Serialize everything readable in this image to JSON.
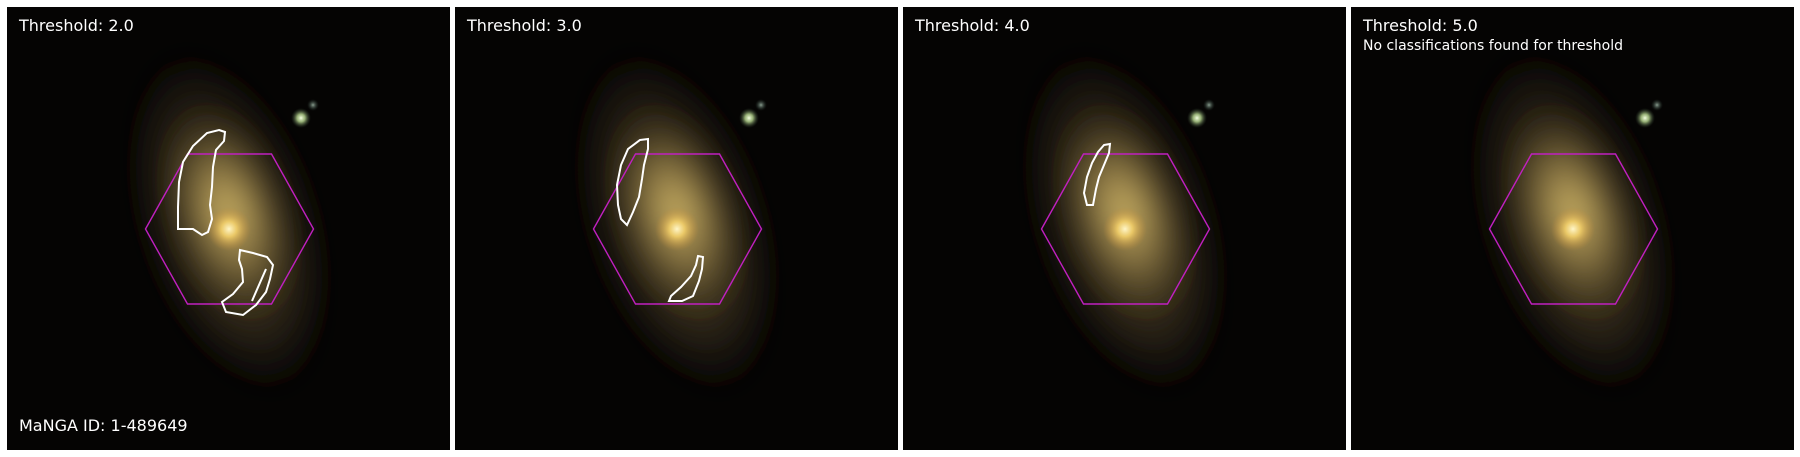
{
  "manga_id_label": "MaNGA ID: 1-489649",
  "colors": {
    "hexagon": "#c020c0",
    "contour": "#ffffff",
    "text": "#ffffff",
    "background": "#000000"
  },
  "panels": [
    {
      "title": "Threshold: 2.0",
      "note": ""
    },
    {
      "title": "Threshold: 3.0",
      "note": ""
    },
    {
      "title": "Threshold: 4.0",
      "note": ""
    },
    {
      "title": "Threshold: 5.0",
      "note": "No classifications found for threshold"
    }
  ]
}
